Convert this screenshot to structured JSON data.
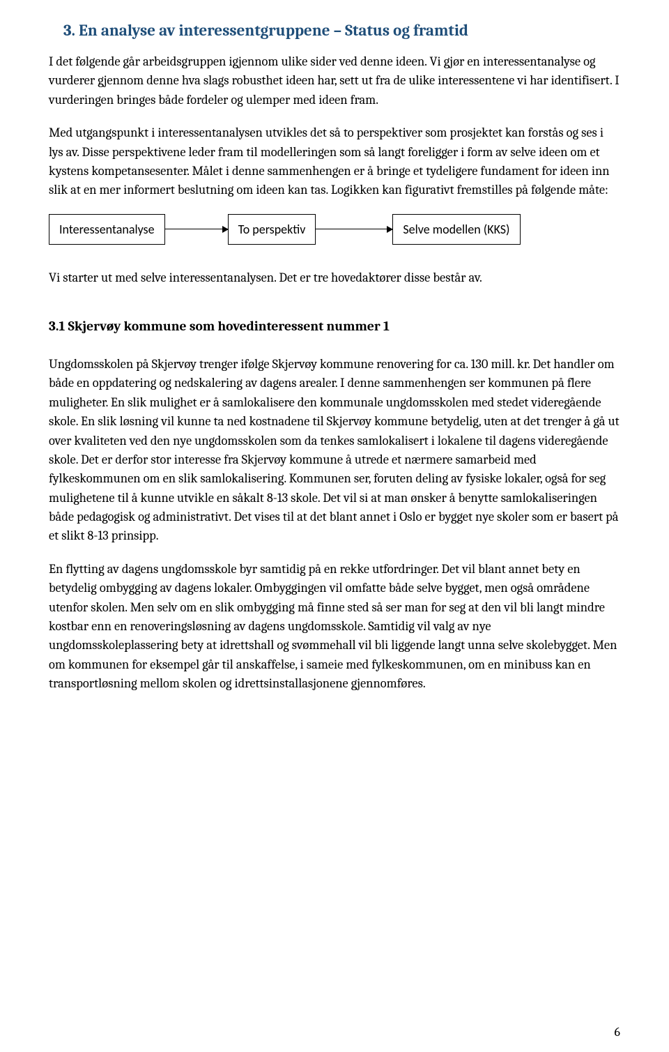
{
  "colors": {
    "heading": "#1f4e79",
    "text": "#000000",
    "background": "#ffffff",
    "box_border": "#000000"
  },
  "typography": {
    "body_font": "Cambria, Georgia, serif",
    "diagram_font": "Calibri, Arial, sans-serif",
    "heading_fontsize": 23,
    "body_fontsize": 18.5,
    "subheading_fontsize": 19.5,
    "diagram_fontsize": 18
  },
  "heading": "3.  En analyse av interessentgruppene – Status og framtid",
  "para1": "I det følgende går arbeidsgruppen igjennom ulike sider ved denne ideen. Vi gjør en interessentanalyse og vurderer gjennom denne hva slags robusthet ideen har, sett ut fra de ulike interessentene vi har identifisert. I vurderingen bringes både fordeler og ulemper med ideen fram.",
  "para2": "Med utgangspunkt i interessentanalysen utvikles det så to perspektiver som prosjektet kan forstås og ses i lys av. Disse perspektivene leder fram til modelleringen som så langt foreligger i form av selve ideen om et kystens kompetansesenter. Målet i denne sammenhengen er å bringe et tydeligere fundament for ideen inn slik at en mer informert beslutning om ideen kan tas. Logikken kan figurativt fremstilles på følgende måte:",
  "diagram": {
    "type": "flowchart",
    "nodes": [
      {
        "id": "n1",
        "label": "Interessentanalyse"
      },
      {
        "id": "n2",
        "label": "To perspektiv"
      },
      {
        "id": "n3",
        "label": "Selve modellen (KKS)"
      }
    ],
    "edges": [
      {
        "from": "n1",
        "to": "n2",
        "arrow": true
      },
      {
        "from": "n2",
        "to": "n3",
        "arrow": true
      }
    ],
    "box_border_color": "#000000",
    "box_background": "#ffffff",
    "line_color": "#000000",
    "line_width": 1
  },
  "para3": "Vi starter ut med selve interessentanalysen. Det er tre hovedaktører disse består av.",
  "subheading": "3.1 Skjervøy kommune som hovedinteressent nummer 1",
  "para4": "Ungdomsskolen på Skjervøy trenger ifølge Skjervøy kommune renovering for ca. 130 mill. kr. Det handler om både en oppdatering og nedskalering av dagens arealer. I denne sammenhengen ser kommunen på flere muligheter. En slik mulighet er å samlokalisere den kommunale ungdomsskolen med stedet videregående skole. En slik løsning vil kunne ta ned kostnadene til Skjervøy kommune betydelig, uten at det trenger å gå ut over kvaliteten ved den nye ungdomsskolen som da tenkes samlokalisert i lokalene til dagens videregående skole. Det er derfor stor interesse fra Skjervøy kommune å utrede et nærmere samarbeid med fylkeskommunen om en slik samlokalisering. Kommunen ser, foruten deling av fysiske lokaler, også for seg mulighetene til å kunne utvikle en såkalt 8-13 skole. Det vil si at man ønsker å benytte samlokaliseringen både pedagogisk og administrativt. Det vises til at det blant annet i Oslo er bygget nye skoler som er basert på et slikt 8-13 prinsipp.",
  "para5": "En flytting av dagens ungdomsskole byr samtidig på en rekke utfordringer. Det vil blant annet bety en betydelig ombygging av dagens lokaler. Ombyggingen vil omfatte både selve bygget, men også områdene utenfor skolen. Men selv om en slik ombygging må finne sted så ser man for seg at den vil bli langt mindre kostbar enn en renoveringsløsning av dagens ungdomsskole.  Samtidig vil valg av nye ungdomsskoleplassering bety at idrettshall og svømmehall vil bli liggende langt unna selve skolebygget. Men om kommunen for eksempel går til anskaffelse, i sameie med fylkeskommunen, om en minibuss kan en transportløsning mellom skolen og idrettsinstallasjonene gjennomføres.",
  "page_number": "6"
}
